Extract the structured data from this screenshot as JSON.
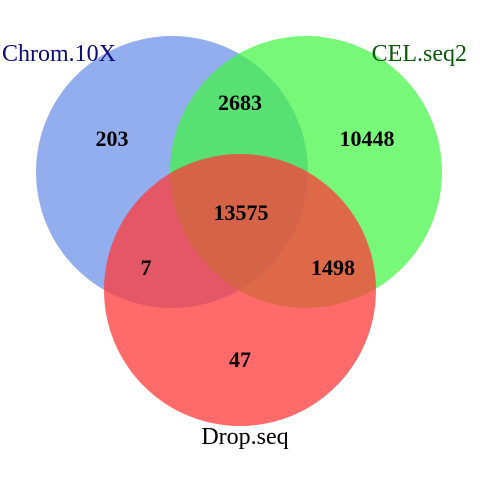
{
  "diagram": {
    "type": "venn3",
    "sets": [
      {
        "id": "A",
        "name": "Chrom.10X",
        "fill_color": "#6a8fe8",
        "label_color": "#0d0d7a"
      },
      {
        "id": "B",
        "name": "CEL.seq2",
        "fill_color": "#3ff53f",
        "label_color": "#0a5a0a"
      },
      {
        "id": "C",
        "name": "Drop.seq",
        "fill_color": "#ff3a3a",
        "label_color": "#000000"
      }
    ],
    "regions": {
      "A_only": "203",
      "B_only": "10448",
      "C_only": "47",
      "A_and_B": "2683",
      "A_and_C": "7",
      "B_and_C": "1498",
      "A_and_B_and_C": "13575"
    }
  }
}
